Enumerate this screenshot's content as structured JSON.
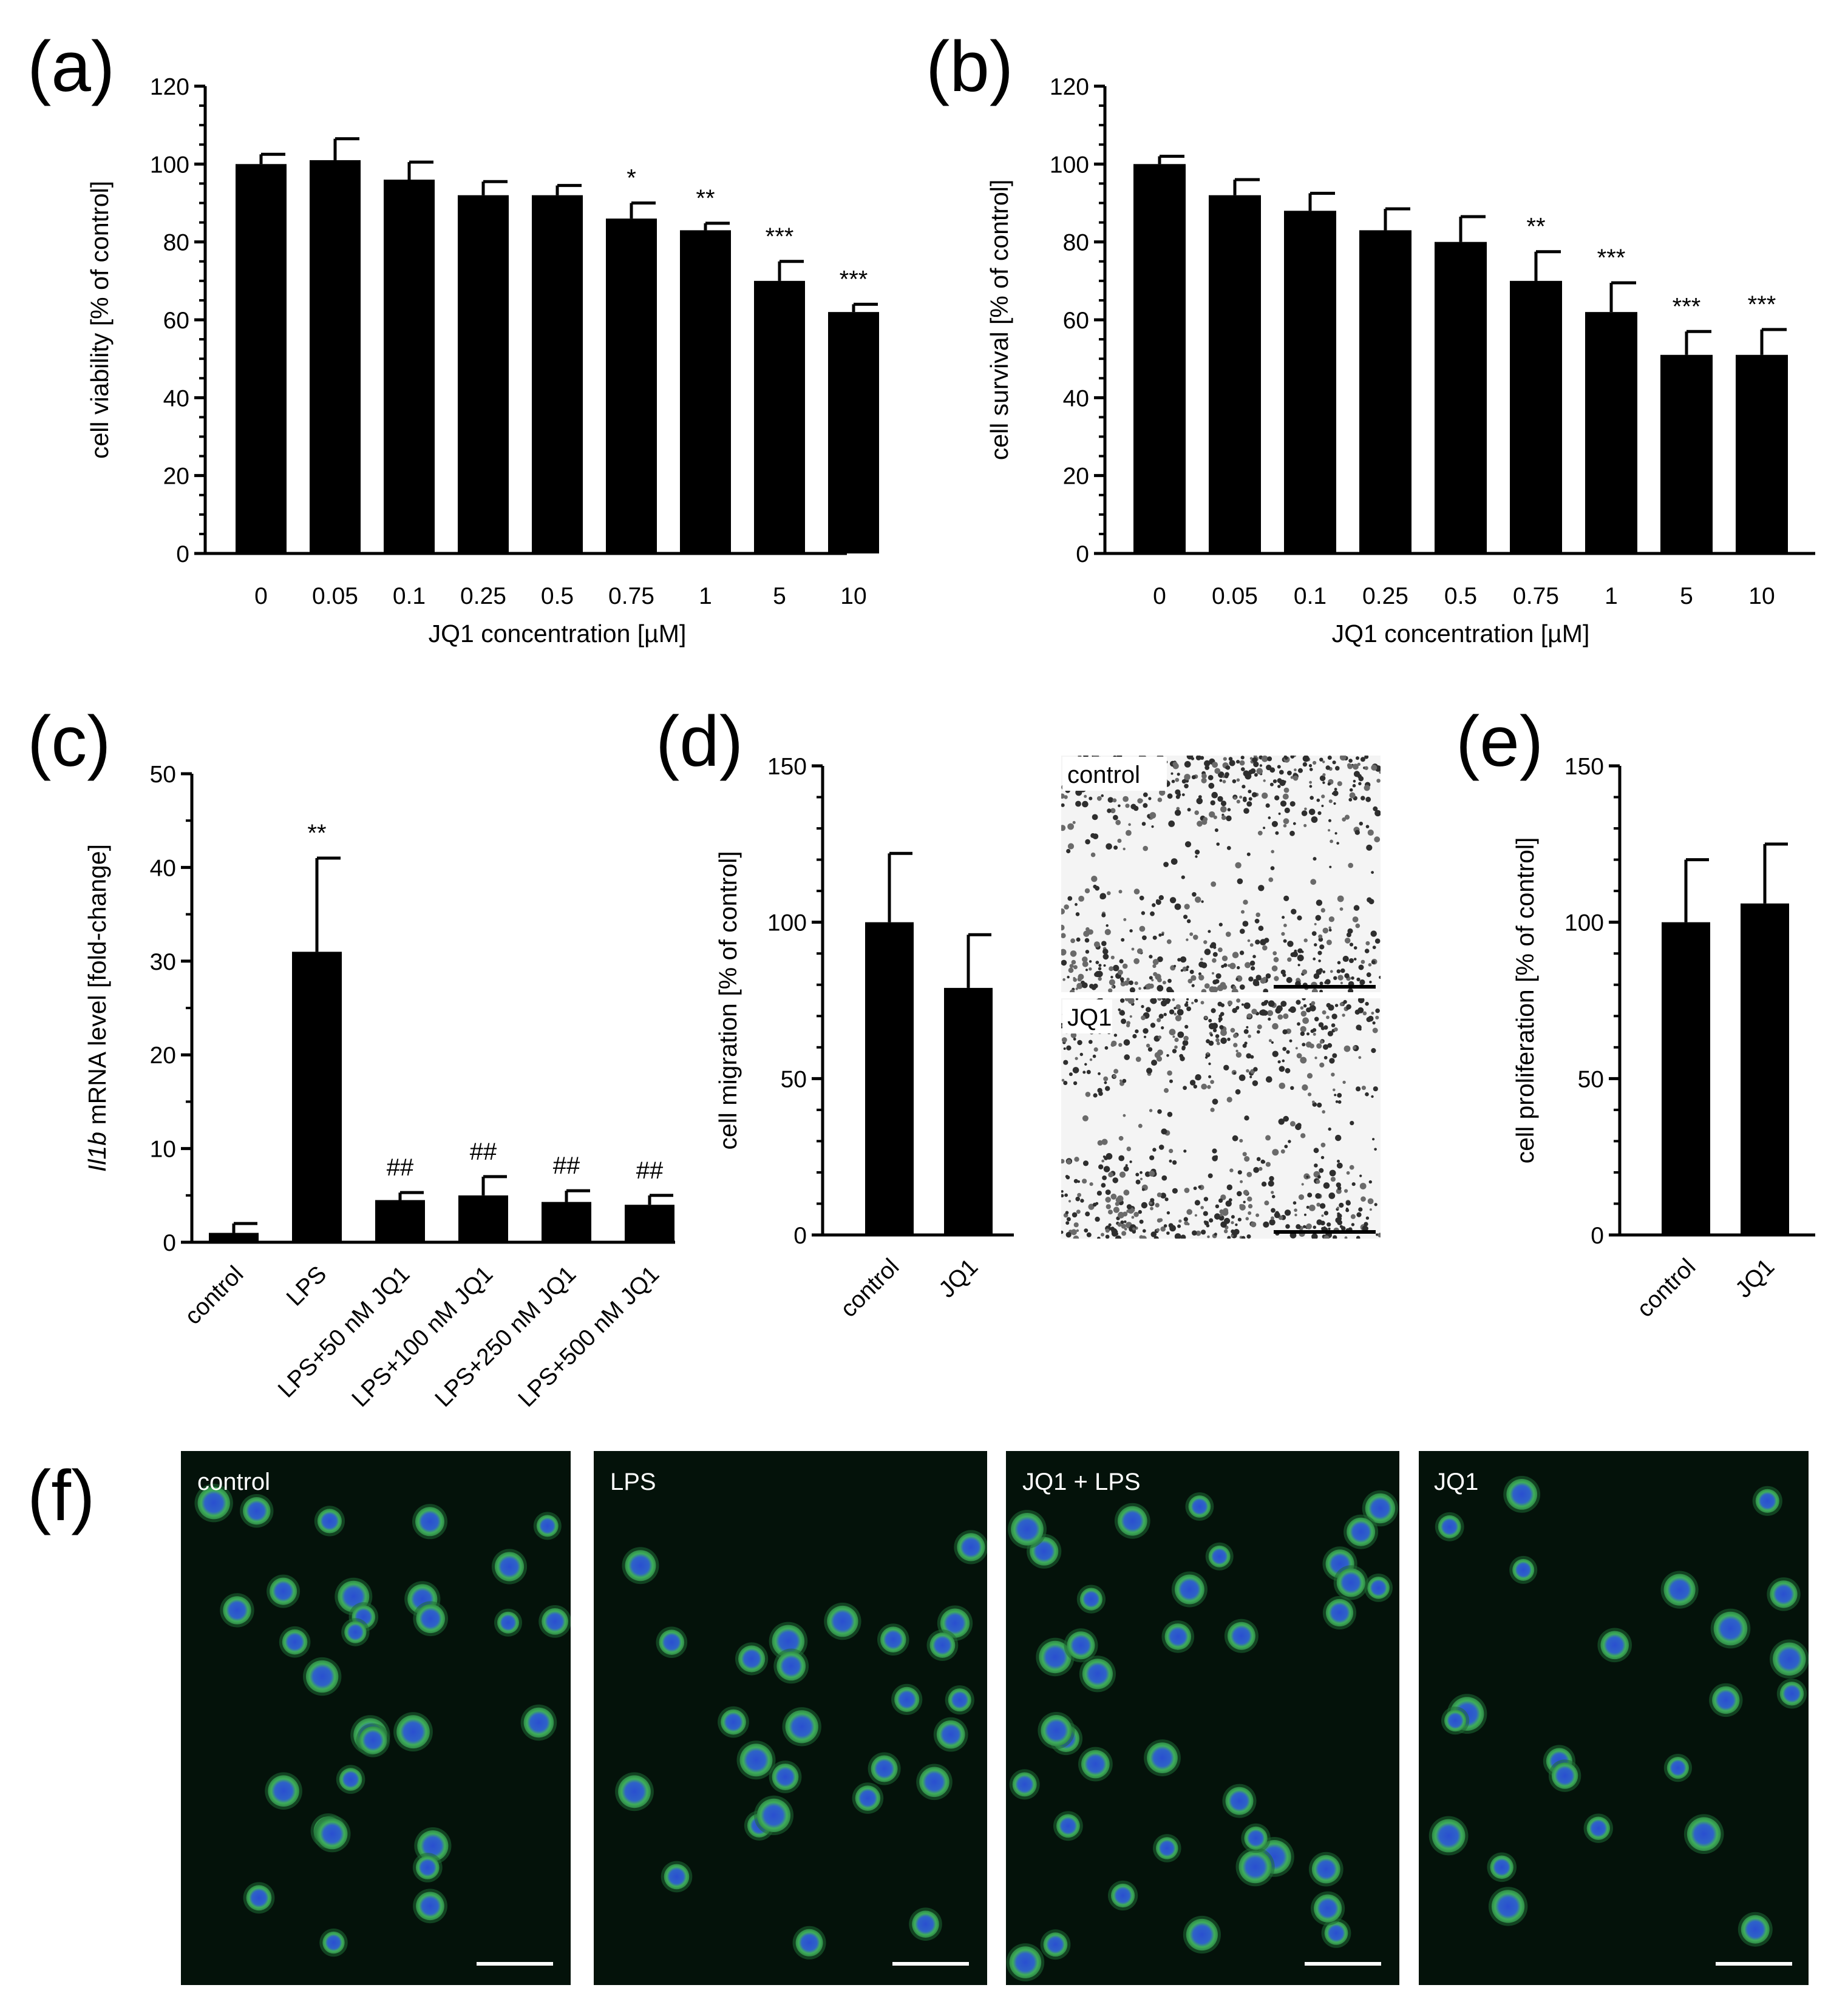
{
  "chart_data": [
    {
      "panel": "(a)",
      "type": "bar",
      "categories": [
        "0",
        "0.05",
        "0.1",
        "0.25",
        "0.5",
        "0.75",
        "1",
        "5",
        "10"
      ],
      "values": [
        100,
        101,
        96,
        92,
        92,
        86,
        83,
        70,
        62
      ],
      "errors": [
        2.5,
        5.5,
        4.5,
        3.5,
        2.5,
        4,
        1.8,
        5,
        2
      ],
      "annotations": [
        "",
        "",
        "",
        "",
        "",
        "*",
        "**",
        "***",
        "***"
      ],
      "xlabel": "JQ1 concentration [µM]",
      "ylabel": "cell viability [% of control]",
      "ylim": [
        0,
        120
      ],
      "yticks": [
        0,
        20,
        40,
        60,
        80,
        100,
        120
      ]
    },
    {
      "panel": "(b)",
      "type": "bar",
      "categories": [
        "0",
        "0.05",
        "0.1",
        "0.25",
        "0.5",
        "0.75",
        "1",
        "5",
        "10"
      ],
      "values": [
        100,
        92,
        88,
        83,
        80,
        70,
        62,
        51,
        51
      ],
      "errors": [
        2,
        4,
        4.5,
        5.5,
        6.5,
        7.5,
        7.5,
        6,
        6.5
      ],
      "annotations": [
        "",
        "",
        "",
        "",
        "",
        "**",
        "***",
        "***",
        "***"
      ],
      "xlabel": "JQ1 concentration [µM]",
      "ylabel": "cell survival [% of control]",
      "ylim": [
        0,
        120
      ],
      "yticks": [
        0,
        20,
        40,
        60,
        80,
        100,
        120
      ]
    },
    {
      "panel": "(c)",
      "type": "bar",
      "categories": [
        "control",
        "LPS",
        "LPS+50 nM JQ1",
        "LPS+100 nM JQ1",
        "LPS+250 nM JQ1",
        "LPS+500 nM JQ1"
      ],
      "values": [
        1,
        31,
        4.5,
        5,
        4.3,
        4
      ],
      "errors": [
        1,
        10,
        0.8,
        2,
        1.2,
        1
      ],
      "annotations": [
        "",
        "**",
        "##",
        "##",
        "##",
        "##"
      ],
      "xlabel": "",
      "ylabel_italic": "Il1b",
      "ylabel": " mRNA level [fold-change]",
      "ylim": [
        0,
        50
      ],
      "yticks": [
        0,
        10,
        20,
        30,
        40,
        50
      ]
    },
    {
      "panel": "(d)",
      "type": "bar",
      "categories": [
        "control",
        "JQ1"
      ],
      "values": [
        100,
        79
      ],
      "errors": [
        22,
        17
      ],
      "xlabel": "",
      "ylabel": "cell migration [% of control]",
      "ylim": [
        0,
        150
      ],
      "yticks": [
        0,
        50,
        100,
        150
      ]
    },
    {
      "panel": "(e)",
      "type": "bar",
      "categories": [
        "control",
        "JQ1"
      ],
      "values": [
        100,
        106
      ],
      "errors": [
        20,
        19
      ],
      "xlabel": "",
      "ylabel": "cell proliferation [% of control]",
      "ylim": [
        0,
        150
      ],
      "yticks": [
        0,
        50,
        100,
        150
      ]
    }
  ],
  "micrographs_d": {
    "labels": [
      "control",
      "JQ1"
    ]
  },
  "micrographs_f": {
    "panel": "(f)",
    "labels": [
      "control",
      "LPS",
      "JQ1 + LPS",
      "JQ1"
    ]
  },
  "colors": {
    "bar": "#000000",
    "micro_bg": "#04120a",
    "cell_membrane": "#3fae5a",
    "cell_nucleus": "#2a4fd0",
    "scratch_bg": "#f4f4f4",
    "scratch_cells": "#3a3a3a"
  }
}
